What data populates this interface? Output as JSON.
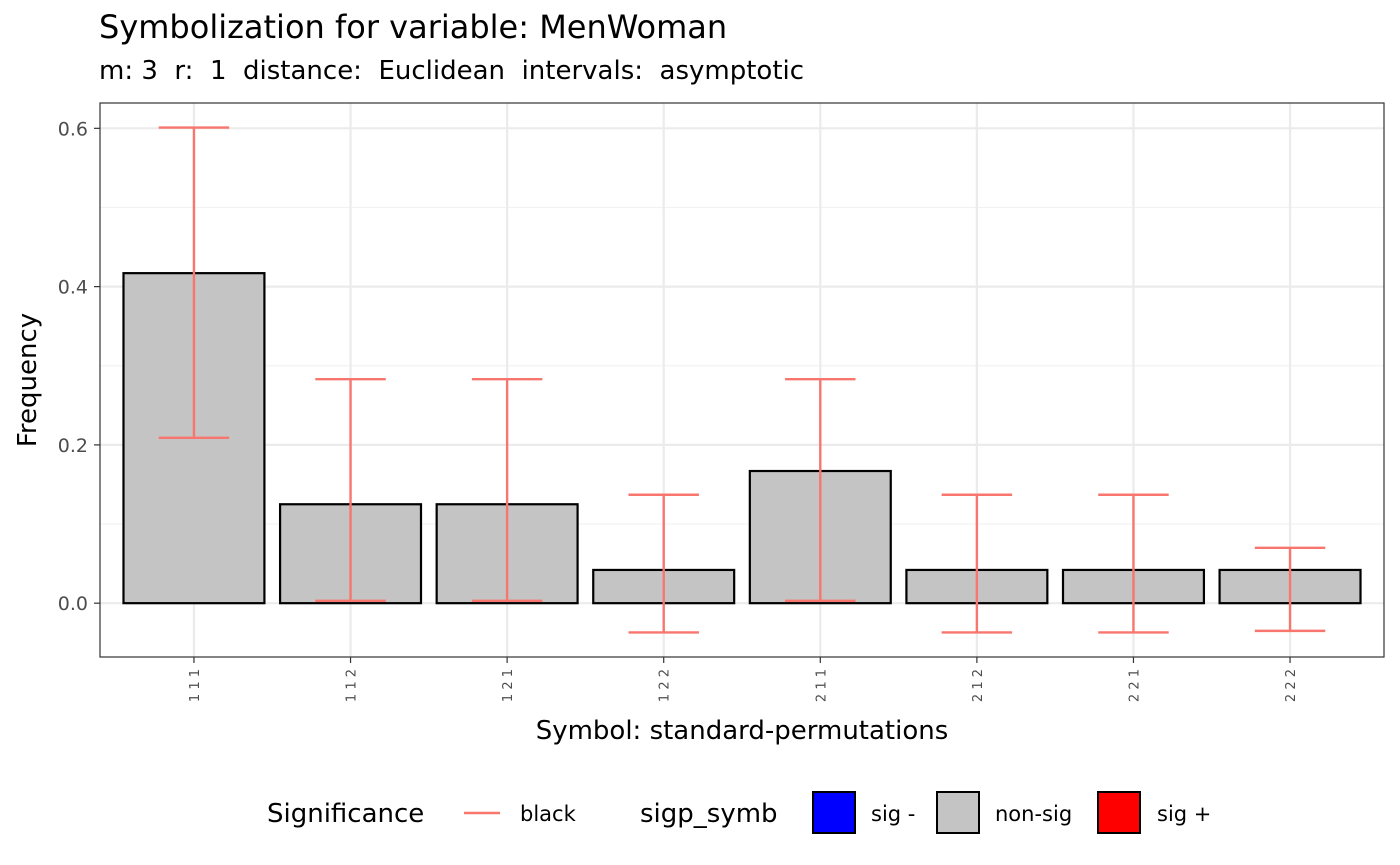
{
  "chart_data": {
    "type": "bar",
    "title": "Symbolization for variable: MenWoman",
    "subtitle": "m: 3  r:  1  distance:  Euclidean  intervals:  asymptotic",
    "xlabel": "Symbol: standard-permutations",
    "ylabel": "Frequency",
    "categories": [
      "1 1 1",
      "1 1 2",
      "1 2 1",
      "1 2 2",
      "2 1 1",
      "2 1 2",
      "2 2 1",
      "2 2 2"
    ],
    "values": [
      0.417,
      0.125,
      0.125,
      0.042,
      0.167,
      0.042,
      0.042,
      0.042
    ],
    "error_low": [
      0.209,
      0.003,
      0.003,
      -0.037,
      0.003,
      -0.037,
      -0.037,
      -0.035
    ],
    "error_high": [
      0.601,
      0.283,
      0.283,
      0.137,
      0.283,
      0.137,
      0.137,
      0.07
    ],
    "significance": [
      "non-sig",
      "non-sig",
      "non-sig",
      "non-sig",
      "non-sig",
      "non-sig",
      "non-sig",
      "non-sig"
    ],
    "ylim": [
      -0.068,
      0.632
    ],
    "yticks": [
      0.0,
      0.2,
      0.4,
      0.6
    ],
    "ytick_labels": [
      "0.0",
      "0.2",
      "0.4",
      "0.6"
    ],
    "grid": true,
    "legend_placement": "bottom",
    "legend": {
      "significance_title": "Significance",
      "significance_label": "black",
      "fill_title": "sigp_symb",
      "fill_entries": [
        {
          "label": "sig -",
          "color": "#0000ff"
        },
        {
          "label": "non-sig",
          "color": "#c4c4c4"
        },
        {
          "label": "sig +",
          "color": "#ff0000"
        }
      ]
    },
    "colors": {
      "bar_fill": "#c4c4c4",
      "bar_stroke": "#000000",
      "errorbar": "#f8766d"
    }
  }
}
